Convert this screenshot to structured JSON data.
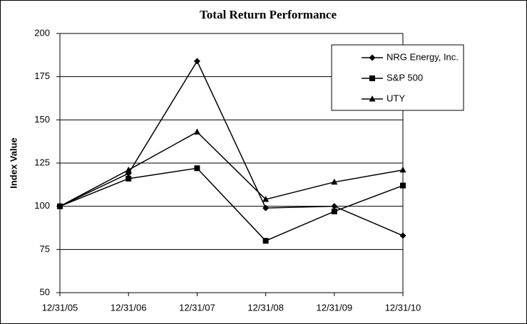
{
  "chart_data": {
    "type": "line",
    "title": "Total Return Performance",
    "y_label": "Index Value",
    "categories": [
      "12/31/05",
      "12/31/06",
      "12/31/07",
      "12/31/08",
      "12/31/09",
      "12/31/10"
    ],
    "series": [
      {
        "name": "NRG Energy, Inc.",
        "color": "#000000",
        "marker": "diamond",
        "values": [
          100,
          119,
          184,
          99,
          100,
          83
        ]
      },
      {
        "name": "S&P 500",
        "color": "#000000",
        "marker": "square",
        "values": [
          100,
          116,
          122,
          80,
          97,
          112
        ]
      },
      {
        "name": "UTY",
        "color": "#000000",
        "marker": "triangle",
        "values": [
          100,
          121,
          143,
          104,
          114,
          121
        ]
      }
    ],
    "ylim": [
      50,
      200
    ],
    "yticks": [
      50,
      75,
      100,
      125,
      150,
      175,
      200
    ],
    "grid": true,
    "legend": "upper right"
  }
}
